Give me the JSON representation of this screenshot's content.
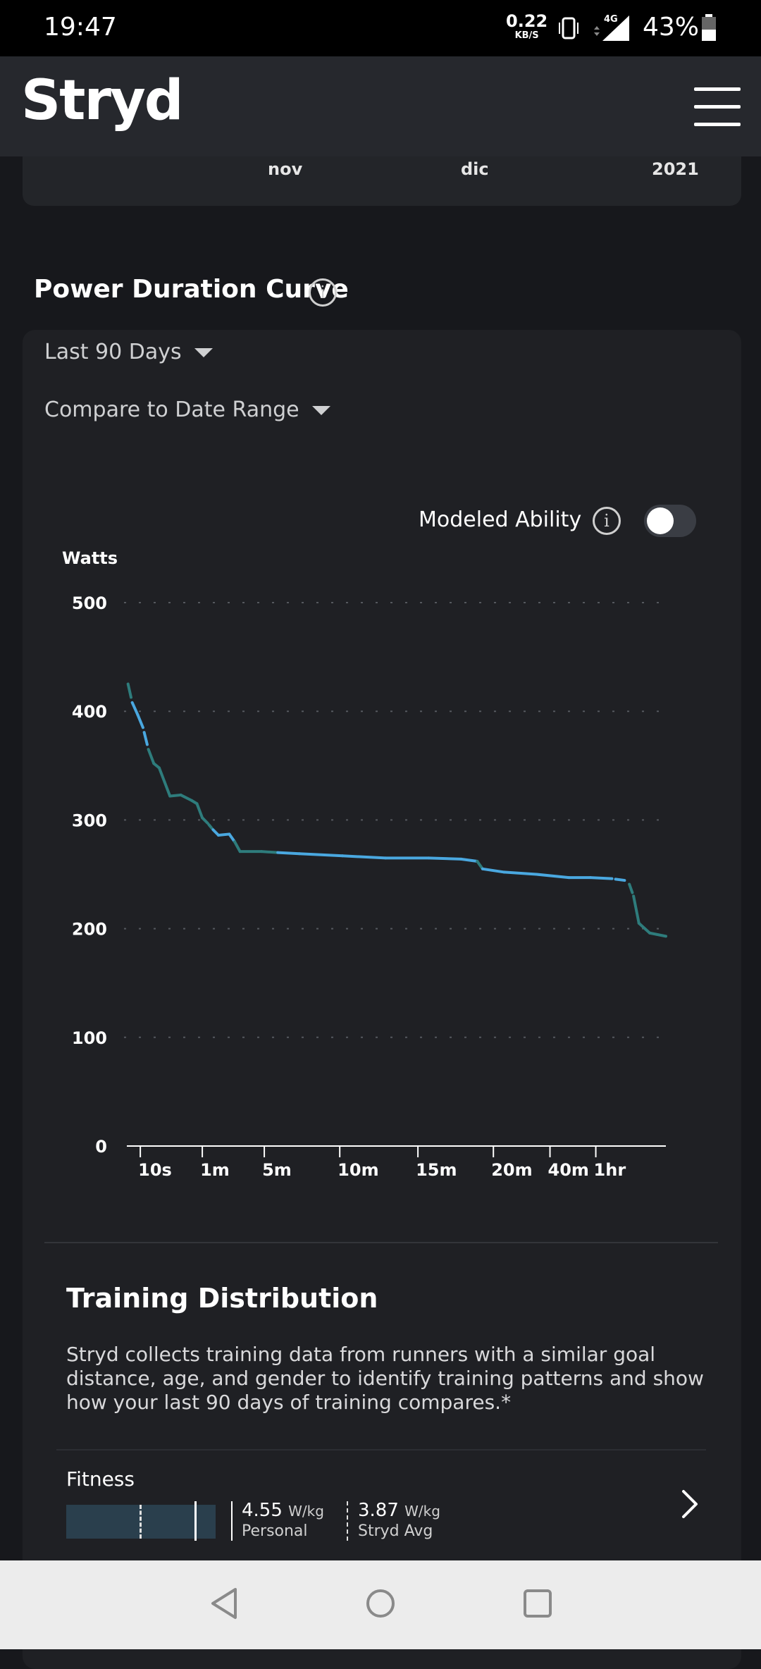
{
  "status": {
    "time": "19:47",
    "net_speed_value": "0.22",
    "net_speed_unit": "KB/S",
    "network": "4G",
    "battery": "43%",
    "icons": [
      "vibrate-icon",
      "signal-icon",
      "battery-icon"
    ]
  },
  "header": {
    "logo": "Stryd",
    "menu_icon": "hamburger-menu-icon"
  },
  "top_chart": {
    "x_labels": [
      "nov",
      "dic",
      "2021"
    ]
  },
  "power_duration": {
    "title": "Power Duration Curve",
    "info_icon": "info-icon",
    "range_dropdown": "Last 90 Days",
    "compare_dropdown": "Compare to Date Range",
    "modeled_ability_label": "Modeled Ability",
    "modeled_ability_enabled": false
  },
  "chart_data": {
    "type": "line",
    "ylabel": "Watts",
    "ylim": [
      0,
      500
    ],
    "y_ticks": [
      0,
      100,
      200,
      300,
      400,
      500
    ],
    "x_tick_labels": [
      "10s",
      "1m",
      "5m",
      "10m",
      "15m",
      "20m",
      "40m",
      "1hr"
    ],
    "grid": true,
    "series": [
      {
        "name": "Power Duration",
        "color_primary": "#4aa8e0",
        "color_secondary": "#2e7c7c",
        "points": [
          [
            0.0,
            430
          ],
          [
            0.01,
            408
          ],
          [
            0.02,
            397
          ],
          [
            0.03,
            385
          ],
          [
            0.04,
            365
          ],
          [
            0.05,
            352
          ],
          [
            0.06,
            348
          ],
          [
            0.07,
            335
          ],
          [
            0.08,
            322
          ],
          [
            0.1,
            323
          ],
          [
            0.12,
            318
          ],
          [
            0.13,
            315
          ],
          [
            0.14,
            302
          ],
          [
            0.15,
            297
          ],
          [
            0.16,
            291
          ],
          [
            0.17,
            286
          ],
          [
            0.19,
            287
          ],
          [
            0.2,
            280
          ],
          [
            0.21,
            271
          ],
          [
            0.25,
            271
          ],
          [
            0.28,
            270
          ],
          [
            0.32,
            269
          ],
          [
            0.4,
            267
          ],
          [
            0.48,
            265
          ],
          [
            0.56,
            265
          ],
          [
            0.62,
            264
          ],
          [
            0.65,
            262
          ],
          [
            0.66,
            255
          ],
          [
            0.7,
            252
          ],
          [
            0.76,
            250
          ],
          [
            0.82,
            247
          ],
          [
            0.86,
            247
          ],
          [
            0.9,
            246
          ],
          [
            0.93,
            244
          ],
          [
            0.94,
            230
          ],
          [
            0.95,
            205
          ],
          [
            0.97,
            196
          ],
          [
            1.0,
            193
          ]
        ]
      }
    ]
  },
  "training_distribution": {
    "title": "Training Distribution",
    "description": "Stryd collects training data from runners with a similar goal distance, age, and gender to identify training patterns and show how your last 90 days of training compares.*",
    "fitness": {
      "label": "Fitness",
      "personal_value": "4.55",
      "personal_unit": "W/kg",
      "personal_label": "Personal",
      "avg_value": "3.87",
      "avg_unit": "W/kg",
      "avg_label": "Stryd Avg"
    }
  },
  "nav": {
    "back": "back-icon",
    "home": "home-icon",
    "recents": "recents-icon"
  }
}
